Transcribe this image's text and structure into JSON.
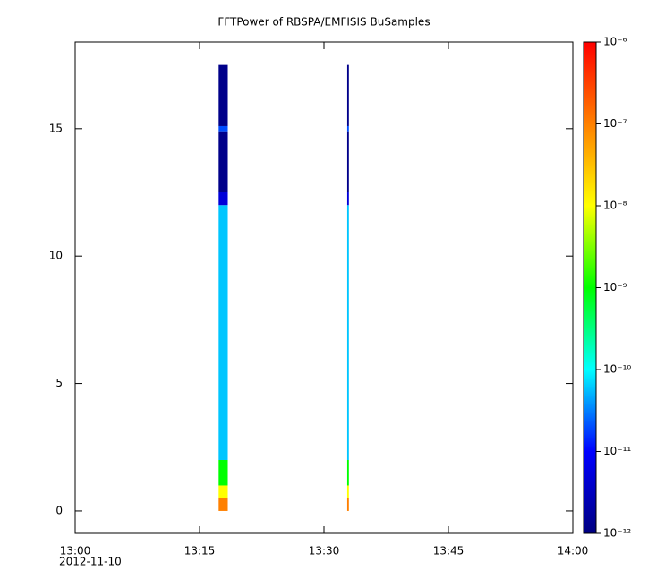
{
  "chart_data": {
    "type": "spectrogram",
    "title": "FFTPower of RBSPA/EMFISIS  BuSamples",
    "x_date": "2012-11-10",
    "xlim": [
      0,
      60
    ],
    "xticks": [
      {
        "value": 0,
        "label": "13:00"
      },
      {
        "value": 15,
        "label": "13:15"
      },
      {
        "value": 30,
        "label": "13:30"
      },
      {
        "value": 45,
        "label": "13:45"
      },
      {
        "value": 60,
        "label": "14:00"
      }
    ],
    "ylim": [
      -0.88,
      18.4
    ],
    "yticks": [
      0,
      5,
      10,
      15
    ],
    "freq_bins": [
      0,
      0.5,
      1,
      2,
      12,
      12.5,
      14.9,
      15.1,
      17.5
    ],
    "columns": [
      {
        "start": 17.3,
        "end": 18.4,
        "values": [
          1e-07,
          1e-08,
          1e-09,
          6e-11,
          5e-12,
          1.2e-12,
          2e-11,
          1.2e-12
        ]
      },
      {
        "start": 32.8,
        "end": 33.0,
        "values": [
          1e-07,
          1e-08,
          1e-09,
          6e-11,
          5e-12,
          1.2e-12,
          2e-11,
          1.2e-12
        ]
      }
    ],
    "zlog": true,
    "zlim": [
      1e-12,
      1e-06
    ],
    "zticks": [
      {
        "value": 1e-12,
        "label": "10⁻¹²"
      },
      {
        "value": 1e-11,
        "label": "10⁻¹¹"
      },
      {
        "value": 1e-10,
        "label": "10⁻¹⁰"
      },
      {
        "value": 1e-09,
        "label": "10⁻⁹"
      },
      {
        "value": 1e-08,
        "label": "10⁻⁸"
      },
      {
        "value": 1e-07,
        "label": "10⁻⁷"
      },
      {
        "value": 1e-06,
        "label": "10⁻⁶"
      }
    ],
    "colormap": [
      "#000080",
      "#0000ff",
      "#00ffff",
      "#00ff00",
      "#ffff00",
      "#ff8000",
      "#ff0000"
    ]
  }
}
